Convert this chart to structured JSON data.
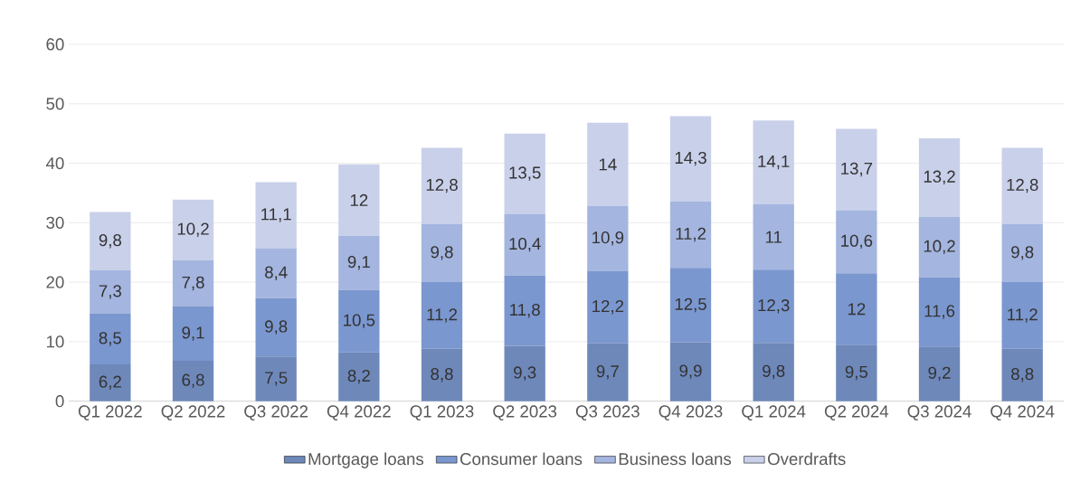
{
  "chart_data": {
    "type": "bar",
    "stacked": true,
    "categories": [
      "Q1 2022",
      "Q2 2022",
      "Q3 2022",
      "Q4 2022",
      "Q1 2023",
      "Q2 2023",
      "Q3 2023",
      "Q4 2023",
      "Q1 2024",
      "Q2 2024",
      "Q3 2024",
      "Q4 2024"
    ],
    "series": [
      {
        "name": "Mortgage loans",
        "color": "#6e88ba",
        "values": [
          6.2,
          6.8,
          7.5,
          8.2,
          8.8,
          9.3,
          9.7,
          9.9,
          9.8,
          9.5,
          9.2,
          8.8
        ],
        "value_labels": [
          "6,2",
          "6,8",
          "7,5",
          "8,2",
          "8,8",
          "9,3",
          "9,7",
          "9,9",
          "9,8",
          "9,5",
          "9,2",
          "8,8"
        ]
      },
      {
        "name": "Consumer loans",
        "color": "#7b97cf",
        "values": [
          8.5,
          9.1,
          9.8,
          10.5,
          11.2,
          11.8,
          12.2,
          12.5,
          12.3,
          12,
          11.6,
          11.2
        ],
        "value_labels": [
          "8,5",
          "9,1",
          "9,8",
          "10,5",
          "11,2",
          "11,8",
          "12,2",
          "12,5",
          "12,3",
          "12",
          "11,6",
          "11,2"
        ]
      },
      {
        "name": "Business loans",
        "color": "#a4b5df",
        "values": [
          7.3,
          7.8,
          8.4,
          9.1,
          9.8,
          10.4,
          10.9,
          11.2,
          11,
          10.6,
          10.2,
          9.8
        ],
        "value_labels": [
          "7,3",
          "7,8",
          "8,4",
          "9,1",
          "9,8",
          "10,4",
          "10,9",
          "11,2",
          "11",
          "10,6",
          "10,2",
          "9,8"
        ]
      },
      {
        "name": "Overdrafts",
        "color": "#c9d0ea",
        "values": [
          9.8,
          10.2,
          11.1,
          12,
          12.8,
          13.5,
          14,
          14.3,
          14.1,
          13.7,
          13.2,
          12.8
        ],
        "value_labels": [
          "9,8",
          "10,2",
          "11,1",
          "12",
          "12,8",
          "13,5",
          "14",
          "14,3",
          "14,1",
          "13,7",
          "13,2",
          "12,8"
        ]
      }
    ],
    "ylim": [
      0,
      60
    ],
    "yticks": [
      0,
      10,
      20,
      30,
      40,
      50,
      60
    ],
    "grid": "y",
    "legend": "bottom"
  }
}
